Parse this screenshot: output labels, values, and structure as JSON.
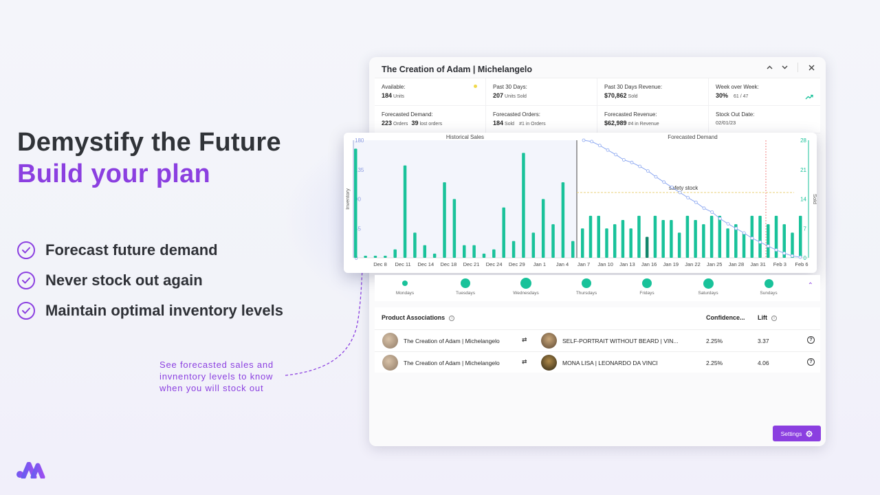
{
  "hero": {
    "line1": "Demystify the Future",
    "line2": "Build your plan"
  },
  "features": [
    "Forecast future demand",
    "Never stock out again",
    "Maintain optimal inventory levels"
  ],
  "callout": "See forecasted sales and invnentory levels to know when you will stock out",
  "panel": {
    "title": "The Creation of Adam | Michelangelo",
    "stats": [
      {
        "label": "Available:",
        "value": "184",
        "sub": "Units"
      },
      {
        "label": "Past 30 Days:",
        "value": "207",
        "sub": "Units Sold"
      },
      {
        "label": "Past 30 Days Revenue:",
        "value": "$70,862",
        "sub": "Sold"
      },
      {
        "label": "Week over Week:",
        "value": "30%",
        "sub": "61  /  47"
      },
      {
        "label": "Forecasted Demand:",
        "value": "223",
        "sub": "Orders",
        "value2": "39",
        "sub2": "lost orders"
      },
      {
        "label": "Forecasted Orders:",
        "value": "184",
        "sub": "Sold",
        "sub2": "#1 in Orders"
      },
      {
        "label": "Forecasted Revenue:",
        "value": "$62,989",
        "sub": "#4 in Revenue"
      },
      {
        "label": "Stock Out Date:",
        "value": "02/01/23"
      }
    ]
  },
  "chart_data": {
    "type": "bar",
    "historical_title": "Historical Sales",
    "forecast_title": "Forecasted Demand",
    "ylabel": "Inventory",
    "y2label": "Sold",
    "ylim": [
      0,
      180
    ],
    "y2lim": [
      0,
      28
    ],
    "left_ticks": [
      "180",
      "135",
      "90",
      "45",
      "0"
    ],
    "right_ticks": [
      "28",
      "21",
      "14",
      "7",
      "0"
    ],
    "annotation": "safety stock",
    "x_ticks": [
      "Dec 8",
      "Dec 11",
      "Dec 14",
      "Dec 18",
      "Dec 21",
      "Dec 24",
      "Dec 29",
      "Jan 1",
      "Jan 4",
      "Jan 7",
      "Jan 10",
      "Jan 13",
      "Jan 16",
      "Jan 19",
      "Jan 22",
      "Jan 25",
      "Jan 28",
      "Jan 31",
      "Feb 3",
      "Feb 6"
    ],
    "historical_sold": [
      26,
      0.5,
      0.5,
      0.5,
      2,
      22,
      6,
      3,
      1,
      18,
      14,
      3,
      3,
      1,
      2,
      12,
      4,
      25,
      6,
      14,
      8,
      18,
      4
    ],
    "forecast_sold": [
      7,
      10,
      10,
      7,
      8,
      9,
      7,
      10,
      5,
      10,
      9,
      9,
      6,
      10,
      9,
      8,
      10,
      10,
      7,
      8,
      6,
      10,
      10,
      8,
      10,
      8,
      6,
      10
    ],
    "inventory_line": [
      180,
      178,
      172,
      165,
      158,
      150,
      146,
      140,
      133,
      124,
      116,
      108,
      100,
      92,
      85,
      76,
      70,
      60,
      52,
      45,
      38,
      30,
      24,
      18,
      12,
      7,
      3,
      1
    ],
    "safety_stock": 100,
    "stockout_marker": "Jan 31"
  },
  "weekdays": [
    {
      "label": "Mondays",
      "size": 0.35
    },
    {
      "label": "Tuesdays",
      "size": 0.6
    },
    {
      "label": "Wednesdays",
      "size": 0.65
    },
    {
      "label": "Thursdays",
      "size": 0.6
    },
    {
      "label": "Fridays",
      "size": 0.6
    },
    {
      "label": "Saturdays",
      "size": 0.62
    },
    {
      "label": "Sundays",
      "size": 0.55
    }
  ],
  "associations": {
    "headers": {
      "product": "Product Associations",
      "confidence": "Confidence...",
      "lift": "Lift"
    },
    "rows": [
      {
        "a": "The Creation of Adam | Michelangelo",
        "b": "SELF-PORTRAIT WITHOUT BEARD | VIN...",
        "confidence": "2.25%",
        "lift": "3.37"
      },
      {
        "a": "The Creation of Adam | Michelangelo",
        "b": "MONA LISA | LEONARDO DA VINCI",
        "confidence": "2.25%",
        "lift": "4.06"
      }
    ]
  },
  "settings_label": "Settings",
  "colors": {
    "accent": "#8b3fe0",
    "bars": "#19c29a",
    "line": "#8aa6f0"
  }
}
